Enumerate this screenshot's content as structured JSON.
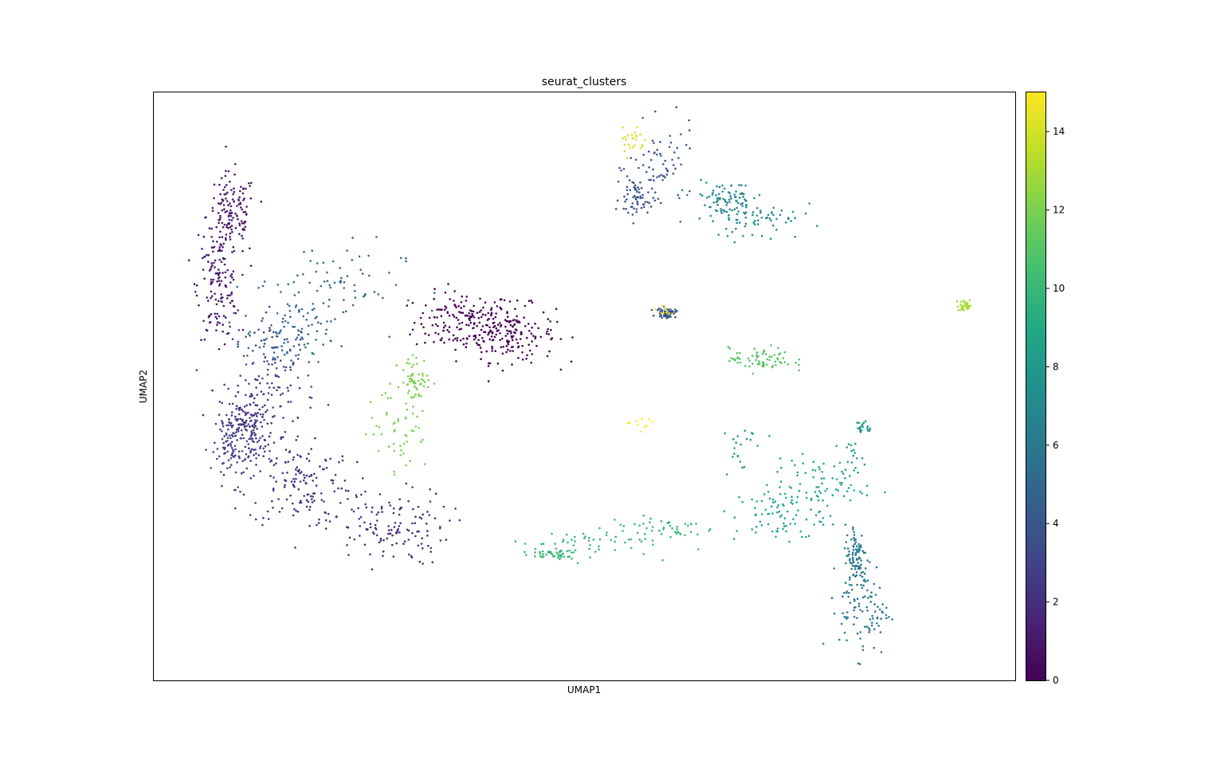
{
  "chart_data": {
    "type": "scatter",
    "title": "seurat_clusters",
    "xlabel": "UMAP1",
    "ylabel": "UMAP2",
    "xlim": [
      0,
      100
    ],
    "ylim": [
      0,
      100
    ],
    "grid": false,
    "legend": "colorbar-right",
    "colormap": "viridis",
    "colorbar": {
      "min": 0,
      "max": 15,
      "ticks": [
        "0",
        "2",
        "4",
        "6",
        "8",
        "10",
        "12",
        "14"
      ]
    },
    "clusters": [
      {
        "id": 0,
        "label": "0",
        "count": 320,
        "blobs": [
          [
            36.0,
            61.0,
            3.6,
            3.2
          ],
          [
            41.5,
            59.0,
            3.2,
            3.0
          ]
        ]
      },
      {
        "id": 1,
        "label": "1",
        "count": 280,
        "blobs": [
          [
            9.0,
            79.0,
            1.8,
            4.5
          ],
          [
            7.5,
            67.0,
            1.5,
            5.5
          ]
        ]
      },
      {
        "id": 2,
        "label": "2",
        "count": 420,
        "blobs": [
          [
            17.0,
            34.0,
            3.8,
            5.0
          ],
          [
            27.0,
            26.0,
            4.5,
            4.0
          ],
          [
            11.0,
            44.0,
            2.2,
            3.5
          ]
        ]
      },
      {
        "id": 3,
        "label": "3",
        "count": 230,
        "blobs": [
          [
            14.0,
            52.0,
            3.0,
            6.0
          ],
          [
            9.5,
            40.0,
            1.8,
            4.0
          ]
        ]
      },
      {
        "id": 4,
        "label": "4",
        "count": 190,
        "blobs": [
          [
            59.0,
            87.0,
            2.4,
            4.5
          ],
          [
            56.0,
            82.0,
            1.2,
            2.5
          ],
          [
            59.5,
            62.5,
            0.7,
            0.5
          ]
        ]
      },
      {
        "id": 5,
        "label": "5",
        "count": 170,
        "blobs": [
          [
            20.0,
            67.0,
            5.5,
            5.0
          ],
          [
            15.5,
            58.0,
            3.0,
            3.5
          ]
        ]
      },
      {
        "id": 6,
        "label": "6",
        "count": 190,
        "blobs": [
          [
            82.5,
            12.0,
            1.8,
            4.8
          ],
          [
            81.5,
            21.0,
            0.8,
            3.5
          ]
        ]
      },
      {
        "id": 7,
        "label": "7",
        "count": 150,
        "blobs": [
          [
            70.0,
            79.0,
            3.2,
            2.6
          ],
          [
            66.0,
            82.0,
            2.2,
            1.8
          ]
        ]
      },
      {
        "id": 8,
        "label": "8",
        "count": 60,
        "blobs": [
          [
            68.0,
            40.0,
            1.0,
            3.5
          ],
          [
            81.0,
            38.0,
            0.9,
            1.5
          ],
          [
            82.5,
            43.0,
            0.6,
            0.8
          ]
        ]
      },
      {
        "id": 9,
        "label": "9",
        "count": 150,
        "blobs": [
          [
            72.5,
            28.0,
            3.2,
            3.0
          ],
          [
            77.0,
            33.0,
            3.5,
            3.0
          ]
        ]
      },
      {
        "id": 10,
        "label": "10",
        "count": 140,
        "blobs": [
          [
            50.0,
            23.5,
            5.0,
            1.5
          ],
          [
            59.0,
            26.0,
            4.0,
            1.2
          ],
          [
            46.0,
            21.5,
            2.0,
            0.6
          ]
        ]
      },
      {
        "id": 11,
        "label": "11",
        "count": 70,
        "blobs": [
          [
            70.5,
            54.5,
            2.3,
            1.3
          ]
        ]
      },
      {
        "id": 12,
        "label": "12",
        "count": 110,
        "blobs": [
          [
            28.5,
            44.0,
            2.2,
            5.5
          ],
          [
            30.5,
            51.0,
            1.0,
            2.5
          ]
        ]
      },
      {
        "id": 13,
        "label": "13",
        "count": 30,
        "blobs": [
          [
            94.2,
            63.8,
            0.6,
            0.6
          ]
        ]
      },
      {
        "id": 14,
        "label": "14",
        "count": 25,
        "blobs": [
          [
            55.5,
            92.0,
            0.9,
            2.0
          ]
        ]
      },
      {
        "id": 15,
        "label": "15",
        "count": 20,
        "blobs": [
          [
            56.0,
            43.8,
            1.1,
            0.6
          ],
          [
            59.2,
            62.8,
            0.5,
            0.5
          ]
        ]
      }
    ]
  }
}
